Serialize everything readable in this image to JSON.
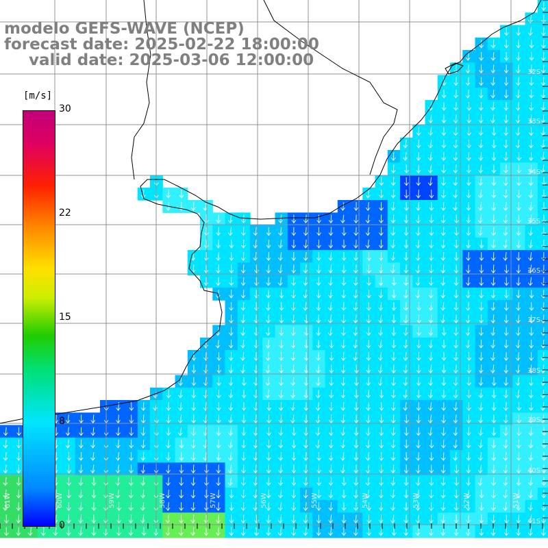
{
  "titles": {
    "line1": "modelo GEFS-WAVE (NCEP)",
    "line2": "forecast date: 2025-02-22 18:00:00",
    "line3": "valid date: 2025-03-06 12:00:00"
  },
  "colorbar": {
    "unit": "[m/s]",
    "ticks": [
      "30",
      "22",
      "15",
      "8",
      "0"
    ],
    "colors": [
      "#0000ff",
      "#0088ff",
      "#00e5ff",
      "#00e070",
      "#22cc00",
      "#ccee00",
      "#ffe000",
      "#ff8800",
      "#ff2000",
      "#e00060",
      "#c0007a"
    ]
  },
  "map": {
    "lat_labels": [
      "32S",
      "33S",
      "34S",
      "35S",
      "36S",
      "37S",
      "38S",
      "39S",
      "40S",
      "41S"
    ],
    "lon_labels": [
      "61W",
      "60W",
      "59W",
      "58W",
      "57W",
      "56W",
      "55W",
      "54W",
      "53W",
      "52W",
      "51W"
    ],
    "field": "wind speed and direction, arrows pointing southward",
    "colors": {
      "ocean_light": "#00e5ff",
      "ocean_mid": "#00bfff",
      "ocean_dark": "#0066ff",
      "land": "#ffffff",
      "grid": "#909090",
      "coast": "#000000"
    }
  }
}
